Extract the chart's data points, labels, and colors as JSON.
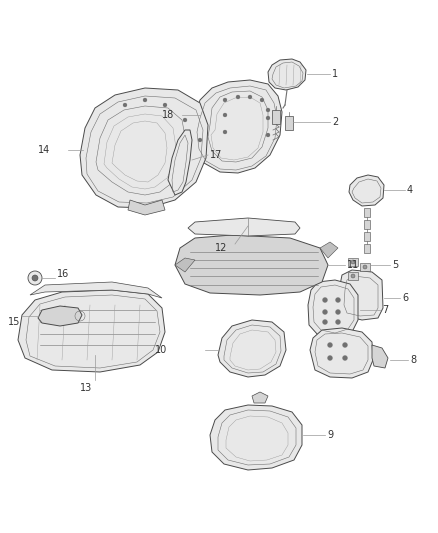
{
  "bg_color": "#ffffff",
  "figsize": [
    4.38,
    5.33
  ],
  "dpi": 100,
  "ec_dark": "#4a4a4a",
  "ec_mid": "#707070",
  "ec_light": "#999999",
  "fc_light": "#e8e8e8",
  "fc_mid": "#d5d5d5",
  "fc_dark": "#c0c0c0",
  "lw_main": 0.7,
  "lw_inner": 0.4,
  "label_fs": 7.0,
  "label_color": "#333333",
  "leader_color": "#999999",
  "leader_lw": 0.5
}
